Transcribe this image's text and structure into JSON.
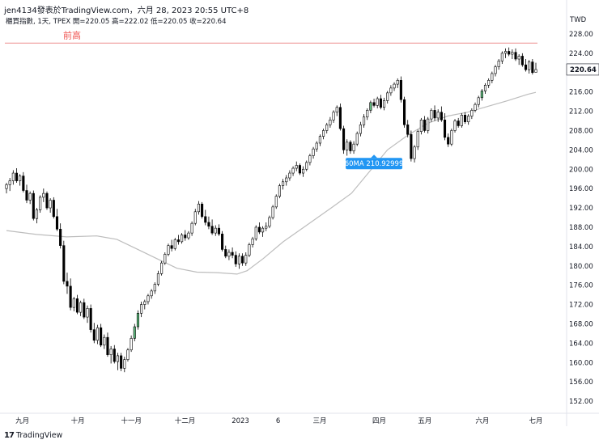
{
  "header": {
    "credit": "jen4134發表於TradingView.com，六月 28, 2023 20:55 UTC+8",
    "symbol_line": "櫃買指數, 1天, TPEX  開=220.05  高=222.02  低=220.05  收=220.64"
  },
  "currency": "TWD",
  "footer": {
    "brand": "TradingView",
    "logo": "tradingview-logo"
  },
  "colors": {
    "candle_up": "#ffffff",
    "candle_down": "#000000",
    "candle_border": "#000000",
    "candle_highlight": "#5fbf7f",
    "ma_line": "#bdbdbd",
    "resistance_line": "#ef9a9a",
    "resistance_label": "#ef5350",
    "ma_label_bg": "#2196f3",
    "price_label_bg": "#ffffff"
  },
  "chart_data": {
    "type": "candlestick",
    "title": "",
    "ylabel": "TWD",
    "ylim": [
      150,
      230
    ],
    "yticks": [
      152,
      156,
      160,
      164,
      168,
      172,
      176,
      180,
      184,
      188,
      192,
      196,
      200,
      204,
      208,
      212,
      216,
      220,
      224,
      228
    ],
    "ytick_labels": [
      "152.00",
      "156.00",
      "160.00",
      "164.00",
      "168.00",
      "172.00",
      "176.00",
      "180.00",
      "184.00",
      "188.00",
      "192.00",
      "196.00",
      "200.00",
      "204.00",
      "208.00",
      "212.00",
      "216.00",
      "220.00",
      "224.00",
      "228.00"
    ],
    "x_labels": [
      {
        "label": "九月",
        "index": 8
      },
      {
        "label": "十月",
        "index": 36
      },
      {
        "label": "十一月",
        "index": 63
      },
      {
        "label": "十二月",
        "index": 90
      },
      {
        "label": "2023",
        "index": 118
      },
      {
        "label": "6",
        "index": 137
      },
      {
        "label": "三月",
        "index": 158
      },
      {
        "label": "四月",
        "index": 188
      },
      {
        "label": "五月",
        "index": 211
      },
      {
        "label": "六月",
        "index": 240
      },
      {
        "label": "七月",
        "index": 267
      }
    ],
    "resistance": {
      "label": "前高",
      "value": 226.1
    },
    "last_price": 220.64,
    "last_price_label": "220.64",
    "ma_label": "60MA 210.92999",
    "ma_label_index": 186,
    "ma": [
      [
        0,
        187.3
      ],
      [
        15,
        186.5
      ],
      [
        30,
        186.0
      ],
      [
        45,
        186.2
      ],
      [
        55,
        185.5
      ],
      [
        65,
        183.5
      ],
      [
        75,
        181.5
      ],
      [
        85,
        179.5
      ],
      [
        95,
        178.7
      ],
      [
        105,
        178.6
      ],
      [
        115,
        178.3
      ],
      [
        120,
        179.0
      ],
      [
        128,
        181.5
      ],
      [
        138,
        185.0
      ],
      [
        150,
        188.5
      ],
      [
        162,
        192.0
      ],
      [
        172,
        195.0
      ],
      [
        180,
        199.0
      ],
      [
        190,
        204.0
      ],
      [
        200,
        207.0
      ],
      [
        210,
        209.5
      ],
      [
        220,
        211.0
      ],
      [
        230,
        211.8
      ],
      [
        240,
        213.0
      ],
      [
        250,
        214.2
      ],
      [
        260,
        215.5
      ],
      [
        264,
        215.9
      ]
    ],
    "candles": [
      [
        0,
        196,
        197.2,
        195.0,
        196.8
      ],
      [
        1,
        196.8,
        198.2,
        195.5,
        197.6
      ],
      [
        2,
        197.6,
        199.8,
        196.8,
        199.2
      ],
      [
        3,
        199.2,
        200.2,
        197.2,
        197.6
      ],
      [
        4,
        197.6,
        199.0,
        196.6,
        198.6
      ],
      [
        5,
        198.6,
        199.4,
        195.2,
        195.6
      ],
      [
        6,
        195.6,
        196.8,
        193.0,
        193.6
      ],
      [
        7,
        193.6,
        195.4,
        192.8,
        195.0
      ],
      [
        8,
        195.0,
        195.6,
        189.4,
        189.8
      ],
      [
        9,
        189.8,
        192.0,
        188.8,
        191.6
      ],
      [
        10,
        191.6,
        194.6,
        191.0,
        194.2
      ],
      [
        11,
        194.2,
        196.0,
        193.2,
        195.0
      ],
      [
        12,
        195.0,
        195.4,
        191.6,
        192.0
      ],
      [
        13,
        192.0,
        194.0,
        191.0,
        193.6
      ],
      [
        14,
        193.6,
        194.2,
        189.8,
        190.2
      ],
      [
        15,
        190.2,
        191.8,
        187.2,
        187.6
      ],
      [
        16,
        187.6,
        188.8,
        183.6,
        184.2
      ],
      [
        17,
        184.2,
        185.2,
        176.2,
        176.8
      ],
      [
        18,
        176.8,
        178.6,
        174.2,
        175.8
      ],
      [
        19,
        175.8,
        177.4,
        170.8,
        171.4
      ],
      [
        20,
        171.4,
        173.6,
        170.6,
        173.2
      ],
      [
        21,
        173.2,
        174.0,
        170.0,
        170.4
      ],
      [
        22,
        170.4,
        172.8,
        169.6,
        172.4
      ],
      [
        23,
        172.4,
        173.2,
        169.0,
        169.4
      ],
      [
        24,
        169.4,
        171.8,
        168.2,
        171.2
      ],
      [
        25,
        171.2,
        172.0,
        166.2,
        166.8
      ],
      [
        26,
        166.8,
        168.2,
        164.0,
        164.6
      ],
      [
        27,
        164.6,
        167.8,
        163.8,
        167.2
      ],
      [
        28,
        167.2,
        168.0,
        163.2,
        163.6
      ],
      [
        29,
        163.6,
        165.8,
        162.8,
        165.2
      ],
      [
        30,
        165.2,
        166.2,
        161.2,
        161.6
      ],
      [
        31,
        161.6,
        163.4,
        159.8,
        162.8
      ],
      [
        32,
        162.8,
        163.6,
        159.8,
        160.2
      ],
      [
        33,
        160.2,
        162.0,
        158.4,
        161.4
      ],
      [
        34,
        161.4,
        162.0,
        158.2,
        158.8
      ],
      [
        35,
        158.8,
        161.2,
        158.0,
        160.6
      ],
      [
        36,
        160.6,
        163.0,
        160.2,
        162.6
      ],
      [
        37,
        162.6,
        165.6,
        162.2,
        165.0
      ],
      [
        38,
        165.0,
        168.0,
        164.4,
        167.4
      ],
      [
        39,
        167.4,
        170.8,
        166.8,
        170.2
      ],
      [
        40,
        170.2,
        172.6,
        169.4,
        172.0
      ],
      [
        41,
        172.0,
        173.0,
        171.0,
        172.6
      ],
      [
        42,
        172.6,
        174.2,
        172.0,
        173.8
      ],
      [
        43,
        173.8,
        175.2,
        173.2,
        174.8
      ],
      [
        44,
        174.8,
        176.6,
        174.2,
        176.2
      ],
      [
        45,
        176.2,
        179.0,
        175.8,
        178.4
      ],
      [
        46,
        178.4,
        181.0,
        178.0,
        180.6
      ],
      [
        47,
        180.6,
        182.8,
        180.2,
        182.4
      ],
      [
        48,
        182.4,
        184.6,
        182.0,
        184.2
      ],
      [
        49,
        184.2,
        185.4,
        183.0,
        183.6
      ],
      [
        50,
        183.6,
        185.8,
        183.2,
        185.4
      ],
      [
        51,
        185.4,
        186.4,
        184.4,
        185.0
      ],
      [
        52,
        185.0,
        186.8,
        184.6,
        186.4
      ],
      [
        53,
        186.4,
        187.4,
        185.2,
        185.8
      ],
      [
        54,
        185.8,
        187.2,
        185.4,
        186.8
      ],
      [
        55,
        186.8,
        189.2,
        186.2,
        188.8
      ],
      [
        56,
        188.8,
        191.8,
        188.4,
        191.2
      ],
      [
        57,
        191.2,
        193.4,
        190.6,
        192.8
      ],
      [
        58,
        192.8,
        193.2,
        189.8,
        190.2
      ],
      [
        59,
        190.2,
        191.6,
        188.4,
        189.0
      ],
      [
        60,
        189.0,
        190.2,
        187.6,
        188.2
      ],
      [
        61,
        188.2,
        189.6,
        186.4,
        186.8
      ],
      [
        62,
        186.8,
        188.4,
        186.2,
        187.8
      ],
      [
        63,
        187.8,
        188.6,
        186.2,
        186.6
      ],
      [
        64,
        186.6,
        187.2,
        183.0,
        183.4
      ],
      [
        65,
        183.4,
        184.2,
        181.6,
        182.0
      ],
      [
        66,
        182.0,
        183.4,
        181.2,
        182.8
      ],
      [
        67,
        182.8,
        183.8,
        181.6,
        182.2
      ],
      [
        68,
        182.2,
        183.0,
        179.8,
        180.4
      ],
      [
        69,
        180.4,
        182.6,
        179.4,
        182.0
      ],
      [
        70,
        182.0,
        182.6,
        180.0,
        180.6
      ],
      [
        71,
        180.6,
        182.8,
        180.0,
        182.2
      ],
      [
        72,
        182.2,
        184.8,
        181.8,
        184.4
      ],
      [
        73,
        184.4,
        186.0,
        183.8,
        185.6
      ],
      [
        74,
        185.6,
        188.4,
        185.2,
        188.0
      ],
      [
        75,
        188.0,
        189.0,
        186.6,
        187.0
      ],
      [
        76,
        187.0,
        188.2,
        186.0,
        187.8
      ],
      [
        77,
        187.8,
        189.0,
        187.2,
        188.2
      ],
      [
        78,
        188.2,
        190.4,
        187.8,
        190.0
      ],
      [
        79,
        190.0,
        192.6,
        189.6,
        192.2
      ],
      [
        80,
        192.2,
        194.8,
        191.8,
        194.4
      ],
      [
        81,
        194.4,
        197.0,
        194.0,
        196.6
      ],
      [
        82,
        196.6,
        198.0,
        195.8,
        197.4
      ],
      [
        83,
        197.4,
        198.8,
        196.6,
        198.2
      ],
      [
        84,
        198.2,
        199.8,
        197.6,
        199.2
      ],
      [
        85,
        199.2,
        200.6,
        198.6,
        200.2
      ],
      [
        86,
        200.2,
        201.6,
        199.6,
        200.8
      ],
      [
        87,
        200.8,
        201.2,
        198.8,
        199.2
      ],
      [
        88,
        199.2,
        200.6,
        198.4,
        200.0
      ],
      [
        89,
        200.0,
        201.8,
        199.6,
        201.4
      ],
      [
        90,
        201.4,
        203.2,
        200.8,
        202.8
      ],
      [
        91,
        202.8,
        204.6,
        202.2,
        204.2
      ],
      [
        92,
        204.2,
        205.8,
        203.6,
        205.4
      ],
      [
        93,
        205.4,
        207.2,
        204.8,
        206.8
      ],
      [
        94,
        206.8,
        208.4,
        206.2,
        208.0
      ],
      [
        95,
        208.0,
        209.6,
        207.4,
        209.2
      ],
      [
        96,
        209.2,
        210.8,
        208.6,
        210.2
      ],
      [
        97,
        210.2,
        212.2,
        209.6,
        211.8
      ],
      [
        98,
        211.8,
        213.2,
        211.0,
        212.8
      ],
      [
        99,
        212.8,
        213.6,
        208.0,
        208.4
      ],
      [
        100,
        208.4,
        209.0,
        203.2,
        204.0
      ],
      [
        101,
        204.0,
        206.2,
        202.8,
        205.6
      ],
      [
        102,
        205.6,
        206.0,
        203.2,
        203.8
      ],
      [
        103,
        203.8,
        205.8,
        203.2,
        205.2
      ],
      [
        104,
        205.2,
        207.8,
        204.8,
        207.4
      ],
      [
        105,
        207.4,
        209.8,
        206.8,
        209.2
      ],
      [
        106,
        209.2,
        211.4,
        208.6,
        210.8
      ],
      [
        107,
        210.8,
        212.6,
        210.2,
        212.2
      ],
      [
        108,
        212.2,
        214.2,
        211.6,
        213.8
      ],
      [
        109,
        213.8,
        214.6,
        212.8,
        213.2
      ],
      [
        110,
        213.2,
        215.0,
        212.6,
        214.6
      ],
      [
        111,
        214.6,
        215.4,
        212.4,
        212.8
      ],
      [
        112,
        212.8,
        214.8,
        212.2,
        214.2
      ],
      [
        113,
        214.2,
        216.2,
        213.6,
        215.8
      ],
      [
        114,
        215.8,
        217.4,
        215.2,
        216.8
      ],
      [
        115,
        216.8,
        218.0,
        216.2,
        217.6
      ],
      [
        116,
        217.6,
        218.8,
        216.8,
        218.4
      ],
      [
        117,
        218.4,
        219.2,
        213.8,
        214.4
      ],
      [
        118,
        214.4,
        215.0,
        208.6,
        209.2
      ],
      [
        119,
        209.2,
        210.2,
        206.6,
        207.2
      ],
      [
        120,
        207.2,
        208.0,
        201.6,
        202.2
      ],
      [
        121,
        202.2,
        205.0,
        201.4,
        204.6
      ],
      [
        122,
        204.6,
        208.2,
        204.0,
        207.8
      ],
      [
        123,
        207.8,
        210.6,
        207.2,
        210.2
      ],
      [
        124,
        210.2,
        211.0,
        207.6,
        208.0
      ],
      [
        125,
        208.0,
        210.8,
        207.4,
        210.4
      ],
      [
        126,
        210.4,
        212.6,
        209.8,
        212.2
      ],
      [
        127,
        212.2,
        213.2,
        210.0,
        210.6
      ],
      [
        128,
        210.6,
        212.4,
        209.8,
        211.8
      ],
      [
        129,
        211.8,
        213.0,
        209.8,
        210.2
      ],
      [
        130,
        210.2,
        211.6,
        206.0,
        206.6
      ],
      [
        131,
        206.6,
        207.4,
        204.6,
        205.2
      ],
      [
        132,
        205.2,
        208.4,
        204.8,
        208.0
      ],
      [
        133,
        208.0,
        210.4,
        207.6,
        210.0
      ],
      [
        134,
        210.0,
        210.6,
        208.6,
        209.0
      ],
      [
        135,
        209.0,
        211.6,
        208.6,
        211.2
      ],
      [
        136,
        211.2,
        211.8,
        209.4,
        209.8
      ],
      [
        137,
        209.8,
        211.4,
        209.2,
        211.0
      ],
      [
        138,
        211.0,
        212.6,
        210.4,
        212.2
      ],
      [
        139,
        212.2,
        213.8,
        211.8,
        213.4
      ],
      [
        140,
        213.4,
        215.2,
        212.8,
        214.8
      ],
      [
        141,
        214.8,
        216.6,
        214.2,
        216.2
      ],
      [
        142,
        216.2,
        217.8,
        215.6,
        217.4
      ],
      [
        143,
        217.4,
        218.8,
        216.8,
        218.4
      ],
      [
        144,
        218.4,
        220.2,
        217.8,
        219.8
      ],
      [
        145,
        219.8,
        221.6,
        219.2,
        221.2
      ],
      [
        146,
        221.2,
        222.8,
        220.6,
        222.4
      ],
      [
        147,
        222.4,
        224.4,
        221.8,
        224.0
      ],
      [
        148,
        224.0,
        225.0,
        223.0,
        224.4
      ],
      [
        149,
        224.4,
        225.2,
        223.4,
        223.8
      ],
      [
        150,
        223.8,
        224.8,
        222.8,
        224.2
      ],
      [
        151,
        224.2,
        225.0,
        222.4,
        222.8
      ],
      [
        152,
        222.8,
        223.8,
        221.6,
        223.4
      ],
      [
        153,
        223.4,
        224.0,
        221.2,
        221.6
      ],
      [
        154,
        221.6,
        222.8,
        220.2,
        220.6
      ],
      [
        155,
        220.6,
        222.6,
        219.8,
        222.2
      ],
      [
        156,
        222.2,
        222.8,
        219.6,
        220.0
      ],
      [
        157,
        220.05,
        222.02,
        220.05,
        220.64
      ]
    ],
    "highlight_indices": [
      38,
      39,
      108,
      141
    ]
  }
}
